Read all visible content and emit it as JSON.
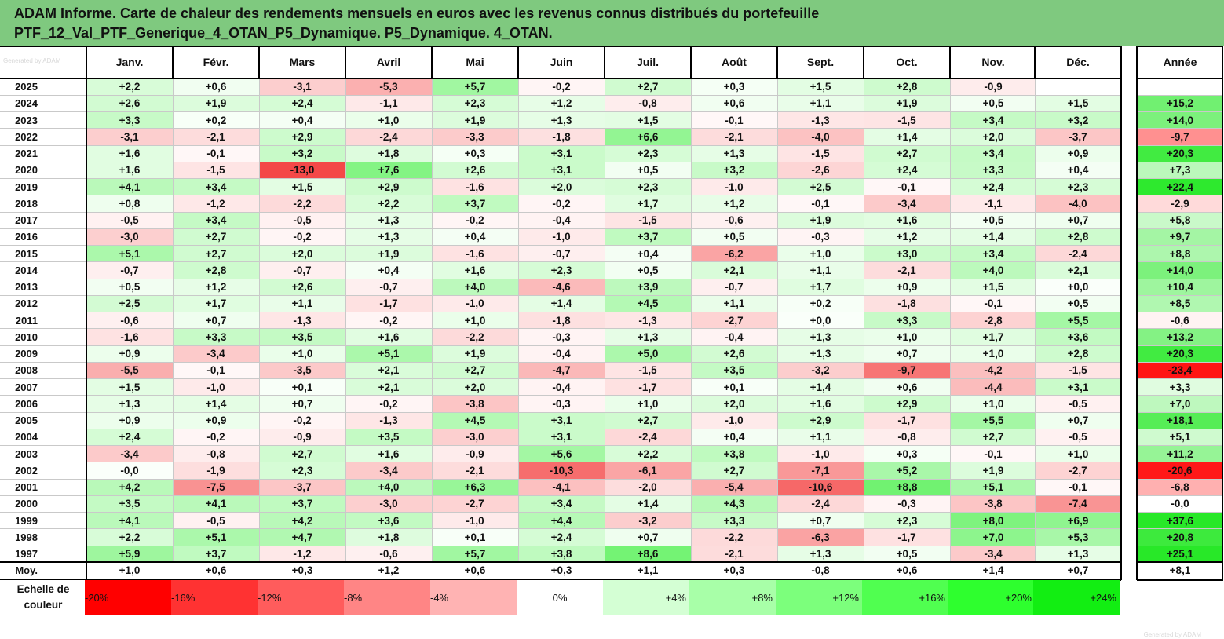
{
  "title": {
    "line1": "ADAM Informe. Carte de chaleur des rendements mensuels en euros avec les revenus connus distribués du portefeuille",
    "line2": "PTF_12_Val_PTF_Generique_4_OTAN_P5_Dynamique. P5_Dynamique. 4_OTAN."
  },
  "watermark": "Generated by ADAM",
  "scale_label": "Echelle de couleur",
  "chart_data": {
    "type": "heatmap",
    "title": "ADAM Informe. Carte de chaleur des rendements mensuels en euros avec les revenus connus distribués du portefeuille PTF_12_Val_PTF_Generique_4_OTAN_P5_Dynamique. P5_Dynamique. 4_OTAN.",
    "columns": [
      "Janv.",
      "Févr.",
      "Mars",
      "Avril",
      "Mai",
      "Juin",
      "Juil.",
      "Août",
      "Sept.",
      "Oct.",
      "Nov.",
      "Déc."
    ],
    "year_label": "Année",
    "avg_label": "Moy.",
    "rows": [
      {
        "year": "2025",
        "values": [
          "+2,2",
          "+0,6",
          "-3,1",
          "-5,3",
          "+5,7",
          "-0,2",
          "+2,7",
          "+0,3",
          "+1,5",
          "+2,8",
          "-0,9",
          ""
        ],
        "annual": ""
      },
      {
        "year": "2024",
        "values": [
          "+2,6",
          "+1,9",
          "+2,4",
          "-1,1",
          "+2,3",
          "+1,2",
          "-0,8",
          "+0,6",
          "+1,1",
          "+1,9",
          "+0,5",
          "+1,5"
        ],
        "annual": "+15,2"
      },
      {
        "year": "2023",
        "values": [
          "+3,3",
          "+0,2",
          "+0,4",
          "+1,0",
          "+1,9",
          "+1,3",
          "+1,5",
          "-0,1",
          "-1,3",
          "-1,5",
          "+3,4",
          "+3,2"
        ],
        "annual": "+14,0"
      },
      {
        "year": "2022",
        "values": [
          "-3,1",
          "-2,1",
          "+2,9",
          "-2,4",
          "-3,3",
          "-1,8",
          "+6,6",
          "-2,1",
          "-4,0",
          "+1,4",
          "+2,0",
          "-3,7"
        ],
        "annual": "-9,7"
      },
      {
        "year": "2021",
        "values": [
          "+1,6",
          "-0,1",
          "+3,2",
          "+1,8",
          "+0,3",
          "+3,1",
          "+2,3",
          "+1,3",
          "-1,5",
          "+2,7",
          "+3,4",
          "+0,9"
        ],
        "annual": "+20,3"
      },
      {
        "year": "2020",
        "values": [
          "+1,6",
          "-1,5",
          "-13,0",
          "+7,6",
          "+2,6",
          "+3,1",
          "+0,5",
          "+3,2",
          "-2,6",
          "+2,4",
          "+3,3",
          "+0,4"
        ],
        "annual": "+7,3"
      },
      {
        "year": "2019",
        "values": [
          "+4,1",
          "+3,4",
          "+1,5",
          "+2,9",
          "-1,6",
          "+2,0",
          "+2,3",
          "-1,0",
          "+2,5",
          "-0,1",
          "+2,4",
          "+2,3"
        ],
        "annual": "+22,4"
      },
      {
        "year": "2018",
        "values": [
          "+0,8",
          "-1,2",
          "-2,2",
          "+2,2",
          "+3,7",
          "-0,2",
          "+1,7",
          "+1,2",
          "-0,1",
          "-3,4",
          "-1,1",
          "-4,0"
        ],
        "annual": "-2,9"
      },
      {
        "year": "2017",
        "values": [
          "-0,5",
          "+3,4",
          "-0,5",
          "+1,3",
          "-0,2",
          "-0,4",
          "-1,5",
          "-0,6",
          "+1,9",
          "+1,6",
          "+0,5",
          "+0,7"
        ],
        "annual": "+5,8"
      },
      {
        "year": "2016",
        "values": [
          "-3,0",
          "+2,7",
          "-0,2",
          "+1,3",
          "+0,4",
          "-1,0",
          "+3,7",
          "+0,5",
          "-0,3",
          "+1,2",
          "+1,4",
          "+2,8"
        ],
        "annual": "+9,7"
      },
      {
        "year": "2015",
        "values": [
          "+5,1",
          "+2,7",
          "+2,0",
          "+1,9",
          "-1,6",
          "-0,7",
          "+0,4",
          "-6,2",
          "+1,0",
          "+3,0",
          "+3,4",
          "-2,4"
        ],
        "annual": "+8,8"
      },
      {
        "year": "2014",
        "values": [
          "-0,7",
          "+2,8",
          "-0,7",
          "+0,4",
          "+1,6",
          "+2,3",
          "+0,5",
          "+2,1",
          "+1,1",
          "-2,1",
          "+4,0",
          "+2,1"
        ],
        "annual": "+14,0"
      },
      {
        "year": "2013",
        "values": [
          "+0,5",
          "+1,2",
          "+2,6",
          "-0,7",
          "+4,0",
          "-4,6",
          "+3,9",
          "-0,7",
          "+1,7",
          "+0,9",
          "+1,5",
          "+0,0"
        ],
        "annual": "+10,4"
      },
      {
        "year": "2012",
        "values": [
          "+2,5",
          "+1,7",
          "+1,1",
          "-1,7",
          "-1,0",
          "+1,4",
          "+4,5",
          "+1,1",
          "+0,2",
          "-1,8",
          "-0,1",
          "+0,5"
        ],
        "annual": "+8,5"
      },
      {
        "year": "2011",
        "values": [
          "-0,6",
          "+0,7",
          "-1,3",
          "-0,2",
          "+1,0",
          "-1,8",
          "-1,3",
          "-2,7",
          "+0,0",
          "+3,3",
          "-2,8",
          "+5,5"
        ],
        "annual": "-0,6"
      },
      {
        "year": "2010",
        "values": [
          "-1,6",
          "+3,3",
          "+3,5",
          "+1,6",
          "-2,2",
          "-0,3",
          "+1,3",
          "-0,4",
          "+1,3",
          "+1,0",
          "+1,7",
          "+3,6"
        ],
        "annual": "+13,2"
      },
      {
        "year": "2009",
        "values": [
          "+0,9",
          "-3,4",
          "+1,0",
          "+5,1",
          "+1,9",
          "-0,4",
          "+5,0",
          "+2,6",
          "+1,3",
          "+0,7",
          "+1,0",
          "+2,8"
        ],
        "annual": "+20,3"
      },
      {
        "year": "2008",
        "values": [
          "-5,5",
          "-0,1",
          "-3,5",
          "+2,1",
          "+2,7",
          "-4,7",
          "-1,5",
          "+3,5",
          "-3,2",
          "-9,7",
          "-4,2",
          "-1,5"
        ],
        "annual": "-23,4"
      },
      {
        "year": "2007",
        "values": [
          "+1,5",
          "-1,0",
          "+0,1",
          "+2,1",
          "+2,0",
          "-0,4",
          "-1,7",
          "+0,1",
          "+1,4",
          "+0,6",
          "-4,4",
          "+3,1"
        ],
        "annual": "+3,3"
      },
      {
        "year": "2006",
        "values": [
          "+1,3",
          "+1,4",
          "+0,7",
          "-0,2",
          "-3,8",
          "-0,3",
          "+1,0",
          "+2,0",
          "+1,6",
          "+2,9",
          "+1,0",
          "-0,5"
        ],
        "annual": "+7,0"
      },
      {
        "year": "2005",
        "values": [
          "+0,9",
          "+0,9",
          "-0,2",
          "-1,3",
          "+4,5",
          "+3,1",
          "+2,7",
          "-1,0",
          "+2,9",
          "-1,7",
          "+5,5",
          "+0,7"
        ],
        "annual": "+18,1"
      },
      {
        "year": "2004",
        "values": [
          "+2,4",
          "-0,2",
          "-0,9",
          "+3,5",
          "-3,0",
          "+3,1",
          "-2,4",
          "+0,4",
          "+1,1",
          "-0,8",
          "+2,7",
          "-0,5"
        ],
        "annual": "+5,1"
      },
      {
        "year": "2003",
        "values": [
          "-3,4",
          "-0,8",
          "+2,7",
          "+1,6",
          "-0,9",
          "+5,6",
          "+2,2",
          "+3,8",
          "-1,0",
          "+0,3",
          "-0,1",
          "+1,0"
        ],
        "annual": "+11,2"
      },
      {
        "year": "2002",
        "values": [
          "-0,0",
          "-1,9",
          "+2,3",
          "-3,4",
          "-2,1",
          "-10,3",
          "-6,1",
          "+2,7",
          "-7,1",
          "+5,2",
          "+1,9",
          "-2,7"
        ],
        "annual": "-20,6"
      },
      {
        "year": "2001",
        "values": [
          "+4,2",
          "-7,5",
          "-3,7",
          "+4,0",
          "+6,3",
          "-4,1",
          "-2,0",
          "-5,4",
          "-10,6",
          "+8,8",
          "+5,1",
          "-0,1"
        ],
        "annual": "-6,8"
      },
      {
        "year": "2000",
        "values": [
          "+3,5",
          "+4,1",
          "+3,7",
          "-3,0",
          "-2,7",
          "+3,4",
          "+1,4",
          "+4,3",
          "-2,4",
          "-0,3",
          "-3,8",
          "-7,4"
        ],
        "annual": "-0,0"
      },
      {
        "year": "1999",
        "values": [
          "+4,1",
          "-0,5",
          "+4,2",
          "+3,6",
          "-1,0",
          "+4,4",
          "-3,2",
          "+3,3",
          "+0,7",
          "+2,3",
          "+8,0",
          "+6,9"
        ],
        "annual": "+37,6"
      },
      {
        "year": "1998",
        "values": [
          "+2,2",
          "+5,1",
          "+4,7",
          "+1,8",
          "+0,1",
          "+2,4",
          "+0,7",
          "-2,2",
          "-6,3",
          "-1,7",
          "+7,0",
          "+5,3"
        ],
        "annual": "+20,8"
      },
      {
        "year": "1997",
        "values": [
          "+5,9",
          "+3,7",
          "-1,2",
          "-0,6",
          "+5,7",
          "+3,8",
          "+8,6",
          "-2,1",
          "+1,3",
          "+0,5",
          "-3,4",
          "+1,3"
        ],
        "annual": "+25,1"
      }
    ],
    "average": {
      "values": [
        "+1,0",
        "+0,6",
        "+0,3",
        "+1,2",
        "+0,6",
        "+0,3",
        "+1,1",
        "+0,3",
        "-0,8",
        "+0,6",
        "+1,4",
        "+0,7"
      ],
      "annual": "+8,1"
    },
    "scale": [
      "-20%",
      "-16%",
      "-12%",
      "-8%",
      "-4%",
      "0%",
      "+4%",
      "+8%",
      "+12%",
      "+16%",
      "+20%",
      "+24%"
    ]
  }
}
